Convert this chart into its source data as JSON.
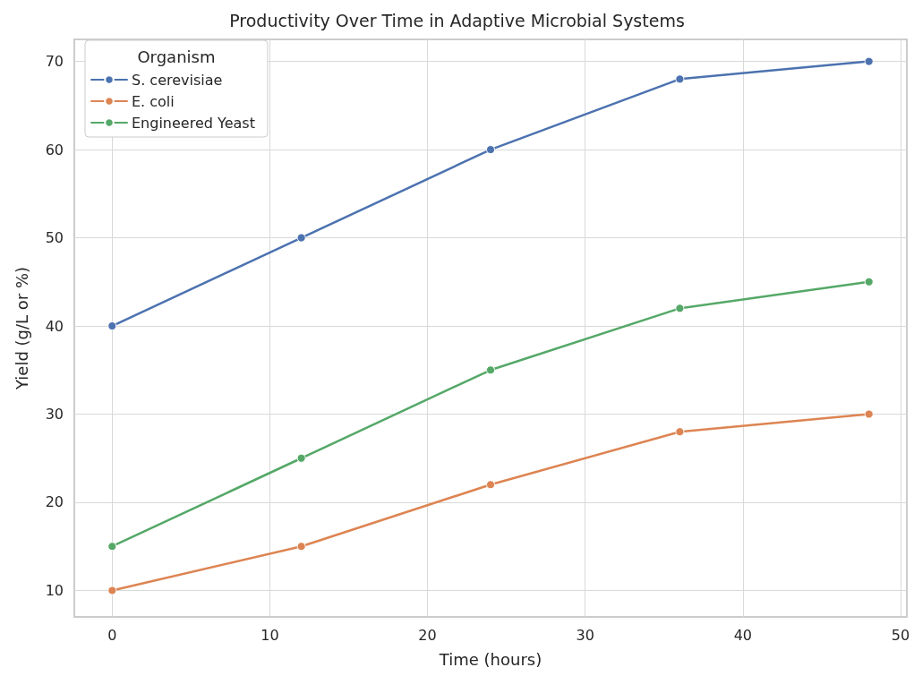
{
  "chart_data": {
    "type": "line",
    "title": "Productivity Over Time in Adaptive Microbial Systems",
    "xlabel": "Time (hours)",
    "ylabel": "Yield (g/L or %)",
    "legend_title": "Organism",
    "x": [
      0,
      12,
      24,
      36,
      48
    ],
    "series": [
      {
        "name": "S. cerevisiae",
        "color": "#4c72b0",
        "values": [
          40,
          50,
          60,
          68,
          70
        ]
      },
      {
        "name": "E. coli",
        "color": "#dd8452",
        "values": [
          10,
          15,
          22,
          28,
          30
        ]
      },
      {
        "name": "Engineered Yeast",
        "color": "#55a868",
        "values": [
          15,
          25,
          35,
          42,
          45
        ]
      }
    ],
    "xlim": [
      -2.4,
      50.4
    ],
    "ylim": [
      7,
      72.5
    ],
    "xticks": [
      0,
      10,
      20,
      30,
      40,
      50
    ],
    "yticks": [
      10,
      20,
      30,
      40,
      50,
      60,
      70
    ],
    "grid": true,
    "legend": "top left",
    "marker": "circle",
    "line_style": "solid"
  }
}
